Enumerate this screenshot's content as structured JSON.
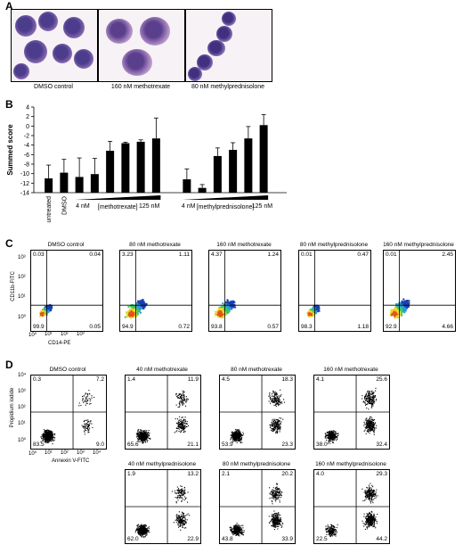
{
  "panelA": {
    "letter": "A",
    "images": [
      {
        "caption": "DMSO control"
      },
      {
        "caption": "160 nM methotrexate"
      },
      {
        "caption": "80 nM methylprednisolone"
      }
    ]
  },
  "panelB": {
    "letter": "B",
    "chart_data": {
      "type": "bar",
      "ylabel": "Summed score",
      "ylim": [
        -14,
        4
      ],
      "yticks": [
        4,
        2,
        0,
        -2,
        -4,
        -6,
        -8,
        -10,
        -12,
        -14
      ],
      "values": [
        -11,
        -9.8,
        -10.7,
        -10.1,
        -5.2,
        -3.6,
        -3.3,
        -2.6,
        -11.2,
        -13,
        -6.3,
        -5,
        -2.6,
        0.2
      ],
      "errors": [
        2.8,
        2.8,
        4,
        3.3,
        2,
        0.2,
        0.4,
        4.3,
        2.2,
        0.7,
        1.7,
        1.5,
        2.5,
        2.2
      ],
      "labels": {
        "untreated": "untreated",
        "dmso": "DMSO",
        "mtx_low": "4 nM",
        "mtx_name": "[methotrexate]",
        "mtx_high": "125 nM",
        "mp_low": "4 nM",
        "mp_name": "[methylprednisolone]",
        "mp_high": "125 nM"
      }
    }
  },
  "panelC": {
    "letter": "C",
    "ylabel": "CD11b-FITC",
    "xlabel": "CD14-PE",
    "ticks": {
      "y": [
        "10³",
        "10²",
        "10¹",
        "10⁰"
      ],
      "x": [
        "10⁰",
        "10¹",
        "10²",
        "10³"
      ]
    },
    "plots": [
      {
        "title": "DMSO control",
        "ul": "0.03",
        "ur": "0.04",
        "ll": "99.9",
        "lr": "0.05"
      },
      {
        "title": "80 nM methotrexate",
        "ul": "3.23",
        "ur": "1.11",
        "ll": "94.9",
        "lr": "0.72"
      },
      {
        "title": "160 nM methotrexate",
        "ul": "4.37",
        "ur": "1.24",
        "ll": "93.8",
        "lr": "0.57"
      },
      {
        "title": "80 nM methylprednisolone",
        "ul": "0.01",
        "ur": "0.47",
        "ll": "98.3",
        "lr": "1.18"
      },
      {
        "title": "160 nM methylprednisolone",
        "ul": "0.01",
        "ur": "2.45",
        "ll": "92.9",
        "lr": "4.66"
      }
    ]
  },
  "panelD": {
    "letter": "D",
    "ylabel": "Propidium iodide",
    "xlabel": "Annexin V-FITC",
    "ticks": {
      "y": [
        "10⁴",
        "10³",
        "10²",
        "10¹",
        "10⁰"
      ],
      "x": [
        "10⁰",
        "10¹",
        "10²",
        "10³",
        "10⁴"
      ]
    },
    "plots": [
      {
        "title": "DMSO control",
        "ul": "0.3",
        "ur": "7.2",
        "ll": "83.5",
        "lr": "9.0"
      },
      {
        "title": "40 nM methotrexate",
        "ul": "1.4",
        "ur": "11.9",
        "ll": "65.6",
        "lr": "21.1"
      },
      {
        "title": "80 nM methotrexate",
        "ul": "4.5",
        "ur": "18.3",
        "ll": "53.9",
        "lr": "23.3"
      },
      {
        "title": "160 nM methotrexate",
        "ul": "4.1",
        "ur": "25.6",
        "ll": "38.0",
        "lr": "32.4"
      },
      {
        "title": "40 nM methylprednisolone",
        "ul": "1.9",
        "ur": "13.2",
        "ll": "62.0",
        "lr": "22.9"
      },
      {
        "title": "80 nM methylprednisolone",
        "ul": "2.1",
        "ur": "20.2",
        "ll": "43.8",
        "lr": "33.9"
      },
      {
        "title": "160 nM methylprednisolone",
        "ul": "4.0",
        "ur": "29.3",
        "ll": "22.5",
        "lr": "44.2"
      }
    ]
  }
}
